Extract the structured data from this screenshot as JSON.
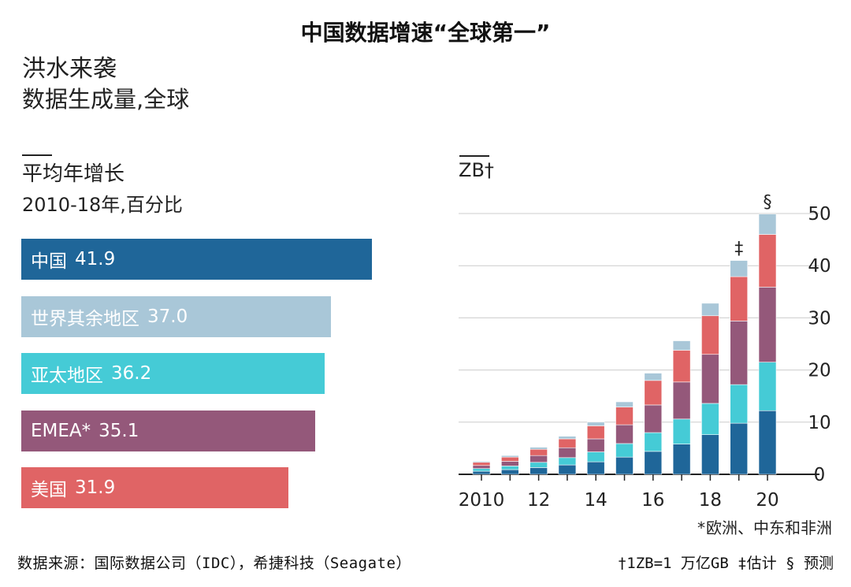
{
  "title": "中国数据增速“全球第一”",
  "headline": "洪水来袭",
  "subhead": "数据生成量,全球",
  "left_panel": {
    "label": "平均年增长",
    "sublabel": "2010-18年,百分比"
  },
  "right_panel": {
    "unit_label": "ZB†"
  },
  "colors": {
    "china": "#1f6699",
    "rest_of_world": "#a9c7d8",
    "apac": "#45cbd6",
    "emea": "#94587a",
    "usa": "#e06465",
    "grid": "#cccccc",
    "axis": "#222222"
  },
  "chart_data": [
    {
      "type": "bar",
      "orientation": "horizontal",
      "title": "平均年增长",
      "subtitle": "2010-18年,百分比",
      "xlim": [
        0,
        43
      ],
      "bars": [
        {
          "label": "中国",
          "value": 41.9,
          "value_text": "41.9",
          "color": "#1f6699"
        },
        {
          "label": "世界其余地区",
          "value": 37.0,
          "value_text": "37.0",
          "color": "#a9c7d8"
        },
        {
          "label": "亚太地区",
          "value": 36.2,
          "value_text": "36.2",
          "color": "#45cbd6"
        },
        {
          "label": "EMEA*",
          "value": 35.1,
          "value_text": "35.1",
          "color": "#94587a"
        },
        {
          "label": "美国",
          "value": 31.9,
          "value_text": "31.9",
          "color": "#e06465"
        }
      ]
    },
    {
      "type": "bar",
      "stacked": true,
      "ylabel": "ZB†",
      "ylim": [
        0,
        50
      ],
      "yticks": [
        "0",
        "10",
        "20",
        "30",
        "40",
        "50"
      ],
      "categories": [
        "2010",
        "2011",
        "2012",
        "2013",
        "2014",
        "2015",
        "2016",
        "2017",
        "2018",
        "2019",
        "2020"
      ],
      "xtick_labels": {
        "2010": "2010",
        "2012": "12",
        "2014": "14",
        "2016": "16",
        "2018": "18",
        "2020": "20"
      },
      "markers": {
        "2019": "‡",
        "2020": "§"
      },
      "grid": true,
      "series": [
        {
          "color": "#1f6699",
          "values": [
            0.6,
            0.9,
            1.3,
            1.8,
            2.4,
            3.3,
            4.4,
            5.8,
            7.6,
            9.8,
            12.2
          ]
        },
        {
          "color": "#45cbd6",
          "values": [
            0.5,
            0.7,
            1.0,
            1.4,
            1.9,
            2.6,
            3.6,
            4.8,
            6.0,
            7.4,
            9.3
          ]
        },
        {
          "color": "#94587a",
          "values": [
            0.6,
            0.9,
            1.3,
            1.9,
            2.5,
            3.6,
            5.3,
            7.1,
            9.4,
            12.2,
            14.4
          ]
        },
        {
          "color": "#e06465",
          "values": [
            0.6,
            0.8,
            1.2,
            1.7,
            2.5,
            3.4,
            4.7,
            6.1,
            7.4,
            8.5,
            10.1
          ]
        },
        {
          "color": "#a9c7d8",
          "values": [
            0.2,
            0.3,
            0.4,
            0.5,
            0.7,
            1.0,
            1.4,
            1.8,
            2.4,
            3.1,
            3.9
          ]
        }
      ]
    }
  ],
  "footnote": "*欧洲、中东和非洲",
  "source": "数据来源：国际数据公司（IDC），希捷科技（Seagate）",
  "notes": "†1ZB=1 万亿GB ‡估计 § 预测"
}
